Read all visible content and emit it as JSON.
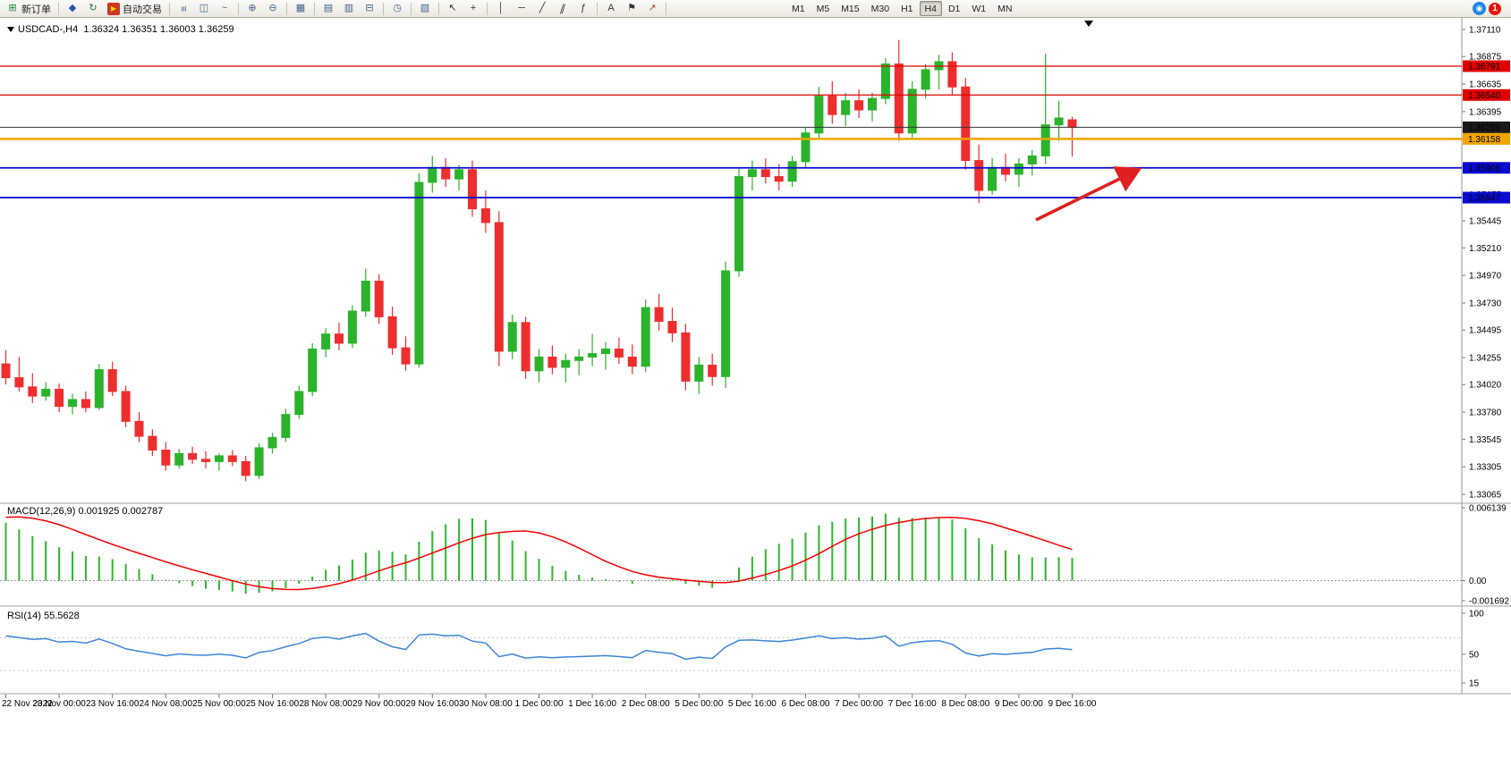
{
  "toolbar": {
    "items": [
      {
        "name": "new-order-button",
        "icon": "new-order-icon",
        "glyph": "⊞",
        "iconColor": "#18892f",
        "label": "新订单"
      },
      {
        "sep": true
      },
      {
        "name": "quick-trade-button",
        "icon": "quick-trade-icon",
        "glyph": "◆",
        "iconColor": "#2456a8"
      },
      {
        "name": "refresh-button",
        "icon": "refresh-icon",
        "glyph": "↻",
        "iconColor": "#1d7a35"
      },
      {
        "name": "autotrade-button",
        "icon": "autotrade-icon",
        "glyph": "▶",
        "iconColor": "#ffd400",
        "iconBg": "#cf3722",
        "label": "自动交易"
      },
      {
        "sep": true
      },
      {
        "name": "bar-chart-button",
        "icon": "bar-chart-icon",
        "glyph": "≡",
        "iconColor": "#44618a",
        "rotate": true
      },
      {
        "name": "candle-chart-button",
        "icon": "candle-chart-icon",
        "glyph": "◫",
        "iconColor": "#44618a"
      },
      {
        "name": "line-chart-button",
        "icon": "line-chart-icon",
        "glyph": "~",
        "iconColor": "#44618a"
      },
      {
        "sep": true
      },
      {
        "name": "zoom-in-button",
        "icon": "zoom-in-icon",
        "glyph": "⊕",
        "iconColor": "#44618a"
      },
      {
        "name": "zoom-out-button",
        "icon": "zoom-out-icon",
        "glyph": "⊖",
        "iconColor": "#44618a"
      },
      {
        "sep": true
      },
      {
        "name": "tile-windows-button",
        "icon": "tile-windows-icon",
        "glyph": "▦",
        "iconColor": "#44618a"
      },
      {
        "sep": true
      },
      {
        "name": "auto-arrange-button",
        "icon": "auto-arrange-icon",
        "glyph": "▤",
        "iconColor": "#44618a"
      },
      {
        "name": "cascade-button",
        "icon": "cascade-icon",
        "glyph": "▥",
        "iconColor": "#44618a"
      },
      {
        "name": "new-chart-button",
        "icon": "new-chart-icon",
        "glyph": "⊟",
        "iconColor": "#44618a"
      },
      {
        "sep": true
      },
      {
        "name": "period-button",
        "icon": "period-icon",
        "glyph": "◷",
        "iconColor": "#44618a"
      },
      {
        "sep": true
      },
      {
        "name": "indicators-button",
        "icon": "indicators-icon",
        "glyph": "▧",
        "iconColor": "#44618a"
      },
      {
        "sep": true
      },
      {
        "name": "cursor-button",
        "icon": "cursor-icon",
        "glyph": "↖",
        "iconColor": "#333333"
      },
      {
        "name": "crosshair-button",
        "icon": "crosshair-icon",
        "glyph": "+",
        "iconColor": "#333333"
      },
      {
        "sep": true
      },
      {
        "name": "vertical-line-button",
        "icon": "vertical-line-icon",
        "glyph": "│",
        "iconColor": "#333333"
      },
      {
        "name": "horizontal-line-button",
        "icon": "horizontal-line-icon",
        "glyph": "─",
        "iconColor": "#333333"
      },
      {
        "name": "trendline-button",
        "icon": "trendline-icon",
        "glyph": "╱",
        "iconColor": "#333333"
      },
      {
        "name": "channel-button",
        "icon": "channel-icon",
        "glyph": "∥",
        "iconColor": "#333333",
        "skew": true
      },
      {
        "name": "fibonacci-button",
        "icon": "fibonacci-icon",
        "glyph": "ƒ",
        "iconColor": "#333333"
      },
      {
        "sep": true
      },
      {
        "name": "text-button",
        "icon": "text-icon",
        "glyph": "A",
        "iconColor": "#333333"
      },
      {
        "name": "label-button",
        "icon": "label-icon",
        "glyph": "⚑",
        "iconColor": "#333333"
      },
      {
        "name": "arrows-button",
        "icon": "arrows-icon",
        "glyph": "↗",
        "iconColor": "#c03a2b"
      },
      {
        "sep": true
      }
    ],
    "timeframes": [
      "M1",
      "M5",
      "M15",
      "M30",
      "H1",
      "H4",
      "D1",
      "W1",
      "MN"
    ],
    "active_timeframe": "H4",
    "notification_count": "1"
  },
  "chart_data": {
    "type": "candlestick",
    "symbol": "USDCAD-",
    "timeframe": "H4",
    "title": "USDCAD-,H4  1.36324 1.36351 1.36003 1.36259",
    "current_ohlc": {
      "open": "1.36324",
      "high": "1.36351",
      "low": "1.36003",
      "close": "1.36259"
    },
    "colors": {
      "bull": "#2bb32b",
      "bear": "#ee2e2e",
      "macd_hist": "#2fb52f",
      "macd_signal": "#f50000",
      "rsi_line": "#3d85d8",
      "line_red": "#e00000",
      "line_blue": "#0a0ad0",
      "line_orange": "#f0a500",
      "current_price": "#1a1a1a"
    },
    "price_axis_ticks": [
      "1.37110",
      "1.36875",
      "1.36635",
      "1.36395",
      "1.36155",
      "1.35915",
      "1.35675",
      "1.35445",
      "1.35210",
      "1.34970",
      "1.34730",
      "1.34495",
      "1.34255",
      "1.34020",
      "1.33780",
      "1.33545",
      "1.33305",
      "1.33065"
    ],
    "price_lines": [
      {
        "name": "resistance-line-1",
        "price": 1.36791,
        "label": "1.36791",
        "color": "#e00000",
        "badge": "#e00000",
        "width": 1.3
      },
      {
        "name": "resistance-line-2",
        "price": 1.3654,
        "label": "1.36540",
        "color": "#e00000",
        "badge": "#e00000",
        "width": 1.3
      },
      {
        "name": "current-price-line",
        "price": 1.36259,
        "label": "1.36259",
        "color": "#333333",
        "badge": "#1a1a1a",
        "width": 1
      },
      {
        "name": "pivot-line-orange",
        "price": 1.36158,
        "label": "1.36158",
        "color": "#f0a500",
        "badge": "#f0a500",
        "width": 2.5
      },
      {
        "name": "support-line-1",
        "price": 1.35906,
        "label": "1.35906",
        "color": "#0a0ad0",
        "badge": "#0a0ad0",
        "width": 1.8
      },
      {
        "name": "support-line-2",
        "price": 1.35647,
        "label": "1.35647",
        "color": "#0a0ad0",
        "badge": "#0a0ad0",
        "width": 1.8
      }
    ],
    "pre_closes": [
      1.3255,
      1.327,
      1.3292,
      1.3315,
      1.3342,
      1.337,
      1.3398,
      1.3428,
      1.3452,
      1.347,
      1.3483,
      1.3492,
      1.3488,
      1.347,
      1.3452,
      1.3435
    ],
    "candles": [
      [
        1.342,
        1.3432,
        1.3402,
        1.3408
      ],
      [
        1.3408,
        1.3426,
        1.3396,
        1.34
      ],
      [
        1.34,
        1.3412,
        1.3386,
        1.3392
      ],
      [
        1.3392,
        1.3404,
        1.3388,
        1.3398
      ],
      [
        1.3398,
        1.3403,
        1.3378,
        1.3383
      ],
      [
        1.3383,
        1.3394,
        1.3376,
        1.3389
      ],
      [
        1.3389,
        1.3396,
        1.3378,
        1.3382
      ],
      [
        1.3382,
        1.342,
        1.338,
        1.3415
      ],
      [
        1.3415,
        1.3422,
        1.3392,
        1.3396
      ],
      [
        1.3396,
        1.3401,
        1.3365,
        1.337
      ],
      [
        1.337,
        1.3378,
        1.3352,
        1.3357
      ],
      [
        1.3357,
        1.3363,
        1.334,
        1.3345
      ],
      [
        1.3345,
        1.3352,
        1.3327,
        1.3332
      ],
      [
        1.3332,
        1.3346,
        1.3329,
        1.3342
      ],
      [
        1.3342,
        1.3348,
        1.3333,
        1.3337
      ],
      [
        1.3337,
        1.3344,
        1.3329,
        1.3335
      ],
      [
        1.3335,
        1.3342,
        1.3327,
        1.334
      ],
      [
        1.334,
        1.3345,
        1.3331,
        1.3335
      ],
      [
        1.3335,
        1.334,
        1.3318,
        1.3323
      ],
      [
        1.3323,
        1.3351,
        1.332,
        1.3347
      ],
      [
        1.3347,
        1.336,
        1.3342,
        1.3356
      ],
      [
        1.3356,
        1.3381,
        1.3352,
        1.3376
      ],
      [
        1.3376,
        1.3401,
        1.3372,
        1.3396
      ],
      [
        1.3396,
        1.3438,
        1.3392,
        1.3433
      ],
      [
        1.3433,
        1.3451,
        1.3426,
        1.3446
      ],
      [
        1.3446,
        1.3456,
        1.3432,
        1.3438
      ],
      [
        1.3438,
        1.3471,
        1.3434,
        1.3466
      ],
      [
        1.3466,
        1.3503,
        1.3461,
        1.3492
      ],
      [
        1.3492,
        1.3498,
        1.3455,
        1.3461
      ],
      [
        1.3461,
        1.347,
        1.3428,
        1.3434
      ],
      [
        1.3434,
        1.3444,
        1.3414,
        1.342
      ],
      [
        1.342,
        1.3586,
        1.3417,
        1.3578
      ],
      [
        1.3578,
        1.3601,
        1.3569,
        1.3591
      ],
      [
        1.3591,
        1.3599,
        1.3574,
        1.3581
      ],
      [
        1.3581,
        1.3593,
        1.3571,
        1.3589
      ],
      [
        1.3589,
        1.3597,
        1.3548,
        1.3555
      ],
      [
        1.3555,
        1.3571,
        1.3534,
        1.3543
      ],
      [
        1.3543,
        1.3553,
        1.3418,
        1.3431
      ],
      [
        1.3431,
        1.3463,
        1.3424,
        1.3456
      ],
      [
        1.3456,
        1.3461,
        1.3407,
        1.3414
      ],
      [
        1.3414,
        1.3433,
        1.3404,
        1.3426
      ],
      [
        1.3426,
        1.3436,
        1.3411,
        1.3417
      ],
      [
        1.3417,
        1.3429,
        1.3404,
        1.3423
      ],
      [
        1.3423,
        1.3433,
        1.341,
        1.3426
      ],
      [
        1.3426,
        1.3446,
        1.3418,
        1.3429
      ],
      [
        1.3429,
        1.3439,
        1.3415,
        1.3433
      ],
      [
        1.3433,
        1.3443,
        1.342,
        1.3426
      ],
      [
        1.3426,
        1.3437,
        1.3411,
        1.3418
      ],
      [
        1.3418,
        1.3476,
        1.3413,
        1.3469
      ],
      [
        1.3469,
        1.3481,
        1.3449,
        1.3457
      ],
      [
        1.3457,
        1.3469,
        1.3439,
        1.3447
      ],
      [
        1.3447,
        1.3455,
        1.3397,
        1.3405
      ],
      [
        1.3405,
        1.3426,
        1.3394,
        1.3419
      ],
      [
        1.3419,
        1.3429,
        1.3401,
        1.3409
      ],
      [
        1.3409,
        1.3509,
        1.3399,
        1.3501
      ],
      [
        1.3501,
        1.3591,
        1.3496,
        1.3583
      ],
      [
        1.3583,
        1.3597,
        1.3571,
        1.3589
      ],
      [
        1.3589,
        1.3599,
        1.3577,
        1.3583
      ],
      [
        1.3583,
        1.3594,
        1.3571,
        1.3579
      ],
      [
        1.3579,
        1.3601,
        1.3574,
        1.3596
      ],
      [
        1.3596,
        1.3626,
        1.3591,
        1.3621
      ],
      [
        1.3621,
        1.3661,
        1.3616,
        1.3653
      ],
      [
        1.3653,
        1.3666,
        1.3629,
        1.3637
      ],
      [
        1.3637,
        1.3656,
        1.3627,
        1.3649
      ],
      [
        1.3649,
        1.3659,
        1.3634,
        1.3641
      ],
      [
        1.3641,
        1.3656,
        1.3631,
        1.3651
      ],
      [
        1.3651,
        1.3686,
        1.3646,
        1.3681
      ],
      [
        1.3681,
        1.3702,
        1.3614,
        1.3621
      ],
      [
        1.3621,
        1.3666,
        1.3617,
        1.3659
      ],
      [
        1.3659,
        1.3681,
        1.3651,
        1.3676
      ],
      [
        1.3676,
        1.3689,
        1.3659,
        1.3683
      ],
      [
        1.3683,
        1.3691,
        1.3654,
        1.3661
      ],
      [
        1.3661,
        1.3669,
        1.3589,
        1.3597
      ],
      [
        1.3597,
        1.3611,
        1.356,
        1.3571
      ],
      [
        1.3571,
        1.3599,
        1.3567,
        1.3591
      ],
      [
        1.3591,
        1.3603,
        1.3579,
        1.3585
      ],
      [
        1.3585,
        1.3599,
        1.3574,
        1.3594
      ],
      [
        1.3594,
        1.3606,
        1.3584,
        1.3601
      ],
      [
        1.3601,
        1.369,
        1.3594,
        1.3628
      ],
      [
        1.3628,
        1.3649,
        1.3614,
        1.3634
      ],
      [
        1.36324,
        1.36351,
        1.36003,
        1.36259
      ]
    ],
    "time_axis": [
      "22 Nov 2022",
      "23 Nov 00:00",
      "23 Nov 16:00",
      "24 Nov 08:00",
      "25 Nov 00:00",
      "25 Nov 16:00",
      "28 Nov 08:00",
      "29 Nov 00:00",
      "29 Nov 16:00",
      "30 Nov 08:00",
      "1 Dec 00:00",
      "1 Dec 16:00",
      "2 Dec 08:00",
      "5 Dec 00:00",
      "5 Dec 16:00",
      "6 Dec 08:00",
      "7 Dec 00:00",
      "7 Dec 16:00",
      "8 Dec 08:00",
      "9 Dec 00:00",
      "9 Dec 16:00"
    ],
    "macd": {
      "label": "MACD(12,26,9) 0.001925 0.002787",
      "params": [
        12,
        26,
        9
      ],
      "values": {
        "main": "0.001925",
        "signal": "0.002787"
      },
      "axis": [
        {
          "text": "0.006139",
          "value": 0.006139
        },
        {
          "text": "0.00",
          "value": 0
        },
        {
          "text": "-0.001692",
          "value": -0.001692
        }
      ]
    },
    "rsi": {
      "label": "RSI(14) 55.5628",
      "period": 14,
      "value": "55.5628",
      "levels": [
        70,
        30
      ],
      "axis": [
        {
          "text": "100",
          "value": 100
        },
        {
          "text": "50",
          "value": 50
        },
        {
          "text": "15",
          "value": 15
        }
      ]
    },
    "annotations": [
      {
        "name": "trend-arrow",
        "type": "arrow",
        "color": "#e02020",
        "direction": "up-right"
      }
    ]
  }
}
